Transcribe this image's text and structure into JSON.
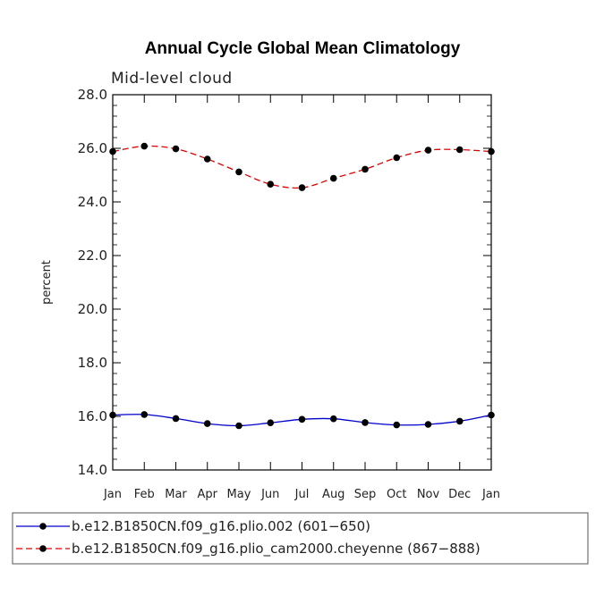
{
  "chart_data": {
    "type": "line",
    "title": "Annual Cycle Global Mean Climatology",
    "subtitle": "Mid-level cloud",
    "xlabel": "",
    "ylabel": "percent",
    "ylim": [
      14.0,
      28.0
    ],
    "yticks": [
      "14.0",
      "16.0",
      "18.0",
      "20.0",
      "22.0",
      "24.0",
      "26.0",
      "28.0"
    ],
    "categories": [
      "Jan",
      "Feb",
      "Mar",
      "Apr",
      "May",
      "Jun",
      "Jul",
      "Aug",
      "Sep",
      "Oct",
      "Nov",
      "Dec",
      "Jan"
    ],
    "grid": false,
    "legend_position": "bottom",
    "series": [
      {
        "name": "b.e12.B1850CN.f09_g16.plio.002 (601-650)",
        "legend_label": "b.e12.B1850CN.f09_g16.plio.002 (601−650)",
        "color": "#0000cc",
        "dash": "solid",
        "values": [
          16.05,
          16.07,
          15.92,
          15.73,
          15.65,
          15.76,
          15.89,
          15.91,
          15.77,
          15.68,
          15.7,
          15.82,
          16.05
        ]
      },
      {
        "name": "b.e12.B1850CN.f09_g16.plio_cam2000.cheyenne (867-888)",
        "legend_label": "b.e12.B1850CN.f09_g16.plio_cam2000.cheyenne (867−888)",
        "color": "#dd0000",
        "dash": "dashed",
        "values": [
          25.88,
          26.08,
          25.98,
          25.6,
          25.12,
          24.66,
          24.53,
          24.88,
          25.22,
          25.65,
          25.93,
          25.95,
          25.88
        ]
      }
    ]
  }
}
